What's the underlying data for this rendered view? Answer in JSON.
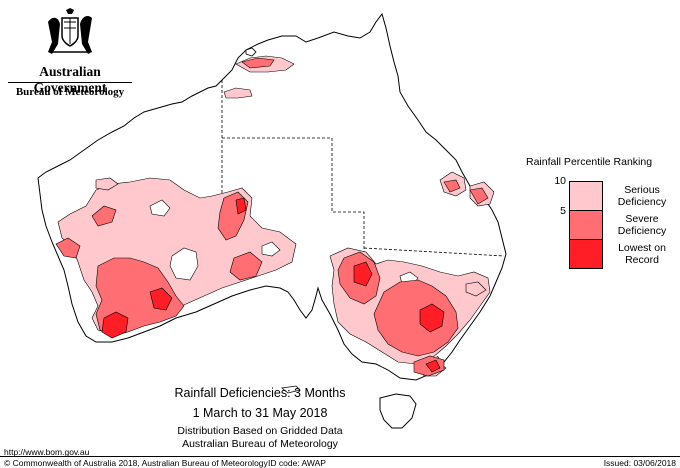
{
  "branding": {
    "government": "Australian Government",
    "bureau": "Bureau of Meteorology"
  },
  "legend": {
    "title": "Rainfall Percentile Ranking",
    "ticks": [
      "10",
      "5"
    ],
    "items": [
      {
        "label": "Serious\nDeficiency",
        "color": "#ffc8cc"
      },
      {
        "label": "Severe\nDeficiency",
        "color": "#ff6e72"
      },
      {
        "label": "Lowest on\nRecord",
        "color": "#ff1e26"
      }
    ]
  },
  "caption": {
    "title": "Rainfall Deficiencies: 3 Months",
    "dates": "1 March to 31 May 2018",
    "distribution": "Distribution Based on Gridded Data",
    "organisation": "Australian Bureau of Meteorology"
  },
  "footer": {
    "url": "http://www.bom.gov.au",
    "copyright": "© Commonwealth of Australia 2018, Australian Bureau of Meteorology",
    "id_code": "ID code: AWAP",
    "issued": "Issued: 03/06/2018"
  }
}
